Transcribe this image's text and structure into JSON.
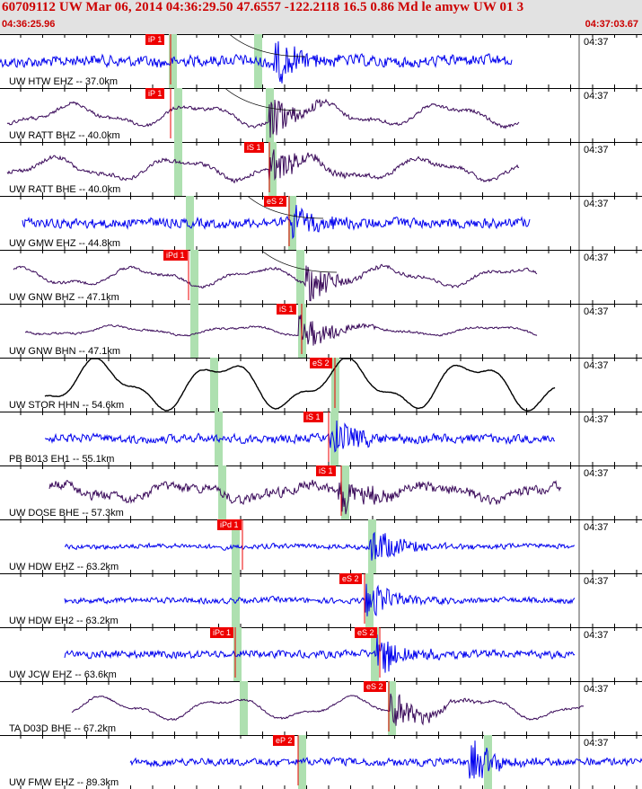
{
  "header": {
    "title": "60709112 UW Mar 06, 2014 04:36:29.50   47.6557 -122.2118 16.5 0.86 Md le amyw UW 01   3",
    "start_time": "04:36:25.96",
    "end_time": "04:37:03.67"
  },
  "colors": {
    "header_bg": "#e2e2e2",
    "header_text": "#cc0000",
    "trace_blue": "#0000ee",
    "trace_purple": "#3a0a5a",
    "trace_black": "#000000",
    "pick_red": "#ee0000",
    "window_green": "#aee0b0"
  },
  "traces": [
    {
      "label": "UW HTW EHZ -- 37.0km",
      "time": "04:37",
      "color": "trace_blue",
      "noise": 0.8,
      "wave": 0.1,
      "start": 0,
      "end": 570,
      "picks": [
        {
          "label": "iP 1",
          "pos": 190
        }
      ],
      "green": [
        192,
        287
      ],
      "event": 310,
      "curve": true
    },
    {
      "label": "UW RATT BHZ -- 40.0km",
      "time": "04:37",
      "color": "trace_purple",
      "noise": 0.25,
      "wave": 0.7,
      "start": 8,
      "end": 578,
      "picks": [
        {
          "label": "iP 1",
          "pos": 190
        }
      ],
      "green": [
        198,
        300
      ],
      "event": 305,
      "curve": true
    },
    {
      "label": "UW RATT BHE -- 40.0km",
      "time": "04:37",
      "color": "trace_purple",
      "noise": 0.3,
      "wave": 0.7,
      "start": 8,
      "end": 578,
      "picks": [
        {
          "label": "iS 1",
          "pos": 300
        }
      ],
      "green": [
        198,
        303
      ],
      "event": 305,
      "curve": false
    },
    {
      "label": "UW GMW EHZ -- 44.8km",
      "time": "04:37",
      "color": "trace_blue",
      "noise": 0.7,
      "wave": 0.05,
      "start": 25,
      "end": 590,
      "picks": [
        {
          "label": "eS 2",
          "pos": 322
        }
      ],
      "green": [
        211,
        325
      ],
      "event": 330,
      "curve": true
    },
    {
      "label": "UW GNW BHZ -- 47.1km",
      "time": "04:37",
      "color": "trace_purple",
      "noise": 0.2,
      "wave": 0.6,
      "start": 15,
      "end": 598,
      "picks": [
        {
          "label": "iPd 1",
          "pos": 210
        }
      ],
      "green": [
        216,
        334
      ],
      "event": 345,
      "curve": true
    },
    {
      "label": "UW GNW BHN -- 47.1km",
      "time": "04:37",
      "color": "trace_purple",
      "noise": 0.15,
      "wave": 0.3,
      "start": 28,
      "end": 598,
      "picks": [
        {
          "label": "iS 1",
          "pos": 336
        }
      ],
      "green": [
        216,
        336
      ],
      "event": 338,
      "curve": false
    },
    {
      "label": "UW STOR HHN -- 54.6km",
      "time": "04:37",
      "color": "trace_black",
      "noise": 0.05,
      "wave": 1.6,
      "start": 50,
      "end": 618,
      "picks": [
        {
          "label": "eS 2",
          "pos": 373
        }
      ],
      "green": [
        238,
        373
      ],
      "event": 0,
      "curve": false
    },
    {
      "label": "PB B013 EH1 -- 55.1km",
      "time": "04:37",
      "color": "trace_blue",
      "noise": 0.6,
      "wave": 0.05,
      "start": 50,
      "end": 618,
      "picks": [
        {
          "label": "iS 1",
          "pos": 366
        }
      ],
      "green": [
        243,
        372
      ],
      "event": 372,
      "curve": false
    },
    {
      "label": "UW DOSE BHE -- 57.3km",
      "time": "04:37",
      "color": "trace_purple",
      "noise": 0.7,
      "wave": 0.5,
      "start": 55,
      "end": 625,
      "picks": [
        {
          "label": "iS 1",
          "pos": 380
        }
      ],
      "green": [
        247,
        384
      ],
      "event": 382,
      "curve": false
    },
    {
      "label": "UW HDW EHZ -- 63.2km",
      "time": "04:37",
      "color": "trace_blue",
      "noise": 0.35,
      "wave": 0.05,
      "start": 72,
      "end": 640,
      "picks": [
        {
          "label": "iPd 1",
          "pos": 270
        }
      ],
      "green": [
        262,
        414
      ],
      "event": 416,
      "curve": false
    },
    {
      "label": "UW HDW EH2 -- 63.2km",
      "time": "04:37",
      "color": "trace_blue",
      "noise": 0.4,
      "wave": 0.05,
      "start": 72,
      "end": 640,
      "picks": [
        {
          "label": "eS 2",
          "pos": 406
        }
      ],
      "green": [
        262,
        411
      ],
      "event": 412,
      "curve": false
    },
    {
      "label": "UW JCW EHZ -- 63.6km",
      "time": "04:37",
      "color": "trace_blue",
      "noise": 0.55,
      "wave": 0.05,
      "start": 72,
      "end": 640,
      "picks": [
        {
          "label": "iPc 1",
          "pos": 262
        },
        {
          "label": "eS 2",
          "pos": 423
        }
      ],
      "green": [
        264,
        417
      ],
      "event": 425,
      "curve": false
    },
    {
      "label": "TA D03D BHE -- 67.2km",
      "time": "04:37",
      "color": "trace_purple",
      "noise": 0.15,
      "wave": 0.7,
      "start": 80,
      "end": 650,
      "picks": [
        {
          "label": "eS 2",
          "pos": 433
        }
      ],
      "green": [
        271,
        436
      ],
      "event": 440,
      "curve": false
    },
    {
      "label": "UW FMW EHZ -- 89.3km",
      "time": "04:37",
      "color": "trace_blue",
      "noise": 0.55,
      "wave": 0.05,
      "start": 145,
      "end": 715,
      "picks": [
        {
          "label": "eP 2",
          "pos": 332
        }
      ],
      "green": [
        336,
        543
      ],
      "event": 528,
      "curve": false
    }
  ]
}
